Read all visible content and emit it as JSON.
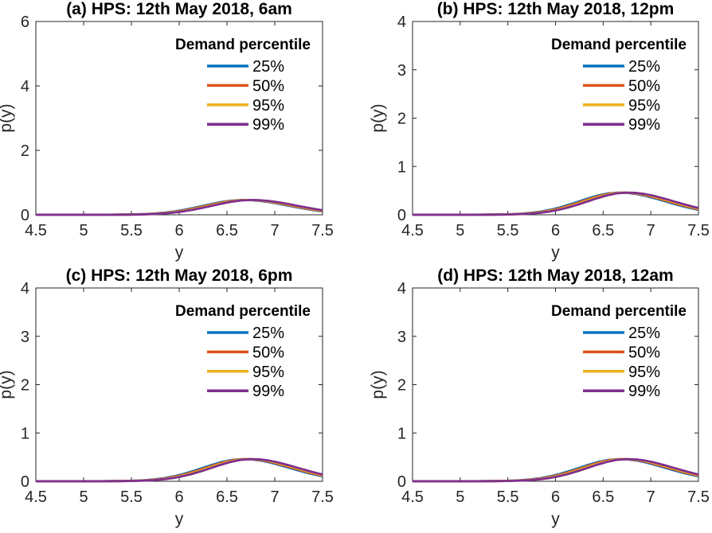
{
  "figure": {
    "background": "#ffffff",
    "axis_color": "#262626",
    "text_color": "#000000"
  },
  "chart_data": [
    {
      "type": "line",
      "title": "(a) HPS: 12th May 2018, 6am",
      "xlabel": "y",
      "ylabel": "p(y)",
      "xlim": [
        4.5,
        7.5
      ],
      "ylim": [
        0,
        6
      ],
      "xticks": [
        4.5,
        5,
        5.5,
        6,
        6.5,
        7,
        7.5
      ],
      "xtick_labels": [
        "4.5",
        "5",
        "5.5",
        "6",
        "6.5",
        "7",
        "7.5"
      ],
      "yticks": [
        0,
        2,
        4,
        6
      ],
      "ytick_labels": [
        "0",
        "2",
        "4",
        "6"
      ],
      "grid": false,
      "legend": {
        "title": "Demand percentile",
        "position": "upper right",
        "frame": false
      },
      "series": [
        {
          "name": "25%",
          "color": "#0072BD",
          "x_offset": -0.05
        },
        {
          "name": "50%",
          "color": "#D95319",
          "x_offset": -0.02
        },
        {
          "name": "95%",
          "color": "#EDB120",
          "x_offset": 0.01
        },
        {
          "name": "99%",
          "color": "#7E2F8E",
          "x_offset": 0.04
        }
      ],
      "density_x": [
        4.4,
        4.5,
        4.6,
        4.7,
        4.8,
        4.9,
        5.0,
        5.1,
        5.2,
        5.3,
        5.4,
        5.5,
        5.6,
        5.7,
        5.8,
        5.9,
        6.0,
        6.1,
        6.2,
        6.3,
        6.4,
        6.5,
        6.6,
        6.7,
        6.8,
        6.9,
        7.0,
        7.1,
        7.2,
        7.3,
        7.4,
        7.5,
        7.6
      ],
      "density_p": [
        0.001,
        0.001,
        0.001,
        0.001,
        0.001,
        0.001,
        0.001,
        0.001,
        0.002,
        0.003,
        0.005,
        0.008,
        0.014,
        0.024,
        0.042,
        0.068,
        0.106,
        0.155,
        0.214,
        0.279,
        0.344,
        0.401,
        0.442,
        0.459,
        0.454,
        0.429,
        0.388,
        0.336,
        0.279,
        0.222,
        0.169,
        0.123,
        0.086
      ]
    },
    {
      "type": "line",
      "title": "(b) HPS: 12th May 2018, 12pm",
      "xlabel": "y",
      "ylabel": "p(y)",
      "xlim": [
        4.5,
        7.5
      ],
      "ylim": [
        0,
        4
      ],
      "xticks": [
        4.5,
        5,
        5.5,
        6,
        6.5,
        7,
        7.5
      ],
      "xtick_labels": [
        "4.5",
        "5",
        "5.5",
        "6",
        "6.5",
        "7",
        "7.5"
      ],
      "yticks": [
        0,
        1,
        2,
        3,
        4
      ],
      "ytick_labels": [
        "0",
        "1",
        "2",
        "3",
        "4"
      ],
      "grid": false,
      "legend": {
        "title": "Demand percentile",
        "position": "upper right",
        "frame": false
      },
      "series": [
        {
          "name": "25%",
          "color": "#0072BD",
          "x_offset": -0.05
        },
        {
          "name": "50%",
          "color": "#D95319",
          "x_offset": -0.02
        },
        {
          "name": "95%",
          "color": "#EDB120",
          "x_offset": 0.01
        },
        {
          "name": "99%",
          "color": "#7E2F8E",
          "x_offset": 0.04
        }
      ],
      "density_x": [
        4.4,
        4.5,
        4.6,
        4.7,
        4.8,
        4.9,
        5.0,
        5.1,
        5.2,
        5.3,
        5.4,
        5.5,
        5.6,
        5.7,
        5.8,
        5.9,
        6.0,
        6.1,
        6.2,
        6.3,
        6.4,
        6.5,
        6.6,
        6.7,
        6.8,
        6.9,
        7.0,
        7.1,
        7.2,
        7.3,
        7.4,
        7.5,
        7.6
      ],
      "density_p": [
        0.001,
        0.001,
        0.001,
        0.001,
        0.001,
        0.001,
        0.001,
        0.001,
        0.002,
        0.003,
        0.005,
        0.008,
        0.014,
        0.024,
        0.042,
        0.068,
        0.106,
        0.155,
        0.214,
        0.279,
        0.344,
        0.401,
        0.442,
        0.459,
        0.454,
        0.429,
        0.388,
        0.336,
        0.279,
        0.222,
        0.169,
        0.123,
        0.086
      ]
    },
    {
      "type": "line",
      "title": "(c) HPS: 12th May 2018, 6pm",
      "xlabel": "y",
      "ylabel": "p(y)",
      "xlim": [
        4.5,
        7.5
      ],
      "ylim": [
        0,
        4
      ],
      "xticks": [
        4.5,
        5,
        5.5,
        6,
        6.5,
        7,
        7.5
      ],
      "xtick_labels": [
        "4.5",
        "5",
        "5.5",
        "6",
        "6.5",
        "7",
        "7.5"
      ],
      "yticks": [
        0,
        1,
        2,
        3,
        4
      ],
      "ytick_labels": [
        "0",
        "1",
        "2",
        "3",
        "4"
      ],
      "grid": false,
      "legend": {
        "title": "Demand percentile",
        "position": "upper right",
        "frame": false
      },
      "series": [
        {
          "name": "25%",
          "color": "#0072BD",
          "x_offset": -0.05
        },
        {
          "name": "50%",
          "color": "#D95319",
          "x_offset": -0.02
        },
        {
          "name": "95%",
          "color": "#EDB120",
          "x_offset": 0.01
        },
        {
          "name": "99%",
          "color": "#7E2F8E",
          "x_offset": 0.04
        }
      ],
      "density_x": [
        4.4,
        4.5,
        4.6,
        4.7,
        4.8,
        4.9,
        5.0,
        5.1,
        5.2,
        5.3,
        5.4,
        5.5,
        5.6,
        5.7,
        5.8,
        5.9,
        6.0,
        6.1,
        6.2,
        6.3,
        6.4,
        6.5,
        6.6,
        6.7,
        6.8,
        6.9,
        7.0,
        7.1,
        7.2,
        7.3,
        7.4,
        7.5,
        7.6
      ],
      "density_p": [
        0.001,
        0.001,
        0.001,
        0.001,
        0.001,
        0.001,
        0.001,
        0.001,
        0.002,
        0.003,
        0.005,
        0.008,
        0.014,
        0.024,
        0.042,
        0.068,
        0.106,
        0.155,
        0.214,
        0.279,
        0.344,
        0.401,
        0.442,
        0.459,
        0.454,
        0.429,
        0.388,
        0.336,
        0.279,
        0.222,
        0.169,
        0.123,
        0.086
      ]
    },
    {
      "type": "line",
      "title": "(d) HPS: 12th May 2018, 12am",
      "xlabel": "y",
      "ylabel": "p(y)",
      "xlim": [
        4.5,
        7.5
      ],
      "ylim": [
        0,
        4
      ],
      "xticks": [
        4.5,
        5,
        5.5,
        6,
        6.5,
        7,
        7.5
      ],
      "xtick_labels": [
        "4.5",
        "5",
        "5.5",
        "6",
        "6.5",
        "7",
        "7.5"
      ],
      "yticks": [
        0,
        1,
        2,
        3,
        4
      ],
      "ytick_labels": [
        "0",
        "1",
        "2",
        "3",
        "4"
      ],
      "grid": false,
      "legend": {
        "title": "Demand percentile",
        "position": "upper right",
        "frame": false
      },
      "series": [
        {
          "name": "25%",
          "color": "#0072BD",
          "x_offset": -0.05
        },
        {
          "name": "50%",
          "color": "#D95319",
          "x_offset": -0.02
        },
        {
          "name": "95%",
          "color": "#EDB120",
          "x_offset": 0.01
        },
        {
          "name": "99%",
          "color": "#7E2F8E",
          "x_offset": 0.04
        }
      ],
      "density_x": [
        4.4,
        4.5,
        4.6,
        4.7,
        4.8,
        4.9,
        5.0,
        5.1,
        5.2,
        5.3,
        5.4,
        5.5,
        5.6,
        5.7,
        5.8,
        5.9,
        6.0,
        6.1,
        6.2,
        6.3,
        6.4,
        6.5,
        6.6,
        6.7,
        6.8,
        6.9,
        7.0,
        7.1,
        7.2,
        7.3,
        7.4,
        7.5,
        7.6
      ],
      "density_p": [
        0.001,
        0.001,
        0.001,
        0.001,
        0.001,
        0.001,
        0.001,
        0.001,
        0.002,
        0.003,
        0.005,
        0.008,
        0.014,
        0.024,
        0.042,
        0.068,
        0.106,
        0.155,
        0.214,
        0.279,
        0.344,
        0.401,
        0.442,
        0.459,
        0.454,
        0.429,
        0.388,
        0.336,
        0.279,
        0.222,
        0.169,
        0.123,
        0.086
      ]
    }
  ]
}
